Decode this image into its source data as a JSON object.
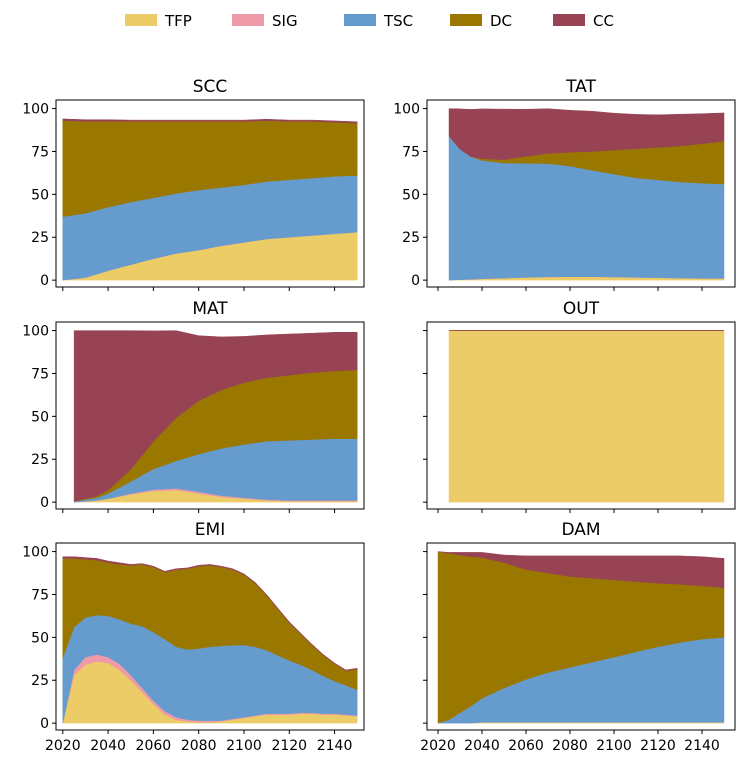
{
  "legend": {
    "placement": "top-center",
    "items": [
      {
        "label": "TFP",
        "color": "#ECCC67"
      },
      {
        "label": "SIG",
        "color": "#EE9AA8"
      },
      {
        "label": "TSC",
        "color": "#669BCE"
      },
      {
        "label": "DC",
        "color": "#9A7800"
      },
      {
        "label": "CC",
        "color": "#974353"
      }
    ]
  },
  "chart_data": [
    {
      "type": "area",
      "title": "SCC",
      "stacked": true,
      "x": [
        2020,
        2030,
        2040,
        2050,
        2060,
        2070,
        2080,
        2090,
        2100,
        2110,
        2120,
        2130,
        2140,
        2150
      ],
      "ylim": [
        -4,
        105
      ],
      "yticks": [
        0,
        25,
        50,
        75,
        100
      ],
      "xlim": [
        2017,
        2153
      ],
      "xticks": [
        2020,
        2040,
        2060,
        2080,
        2100,
        2120,
        2140
      ],
      "show_xtick_labels": false,
      "series": [
        {
          "name": "TFP",
          "values": [
            0,
            1.5,
            5.5,
            9,
            12.5,
            15.5,
            17.5,
            20,
            22,
            24,
            25,
            26,
            27,
            28
          ]
        },
        {
          "name": "SIG",
          "values": [
            0,
            0,
            0,
            0,
            0,
            0,
            0,
            0,
            0,
            0,
            0,
            0,
            0,
            0
          ]
        },
        {
          "name": "TSC",
          "values": [
            37,
            37.5,
            37,
            36.5,
            35.5,
            35,
            35,
            34,
            33.5,
            33.5,
            33.5,
            33.5,
            33.5,
            33
          ]
        },
        {
          "name": "DC",
          "values": [
            56,
            53.5,
            50,
            47,
            44.5,
            42,
            40,
            38.5,
            37,
            35.5,
            34,
            33,
            31.5,
            30.5
          ]
        },
        {
          "name": "CC",
          "values": [
            1,
            1,
            1,
            0.8,
            0.8,
            0.8,
            0.8,
            0.8,
            0.8,
            0.8,
            0.8,
            0.8,
            0.8,
            0.8
          ]
        }
      ]
    },
    {
      "type": "area",
      "title": "TAT",
      "stacked": true,
      "x": [
        2025,
        2030,
        2035,
        2040,
        2050,
        2060,
        2070,
        2080,
        2090,
        2100,
        2110,
        2120,
        2130,
        2140,
        2150
      ],
      "ylim": [
        -4,
        105
      ],
      "yticks": [
        0,
        25,
        50,
        75,
        100
      ],
      "xlim": [
        2015,
        2155
      ],
      "xticks": [
        2020,
        2040,
        2060,
        2080,
        2100,
        2120,
        2140
      ],
      "show_xtick_labels": false,
      "series": [
        {
          "name": "TFP",
          "values": [
            0,
            0.3,
            0.5,
            0.8,
            1.2,
            1.6,
            1.9,
            2,
            2,
            1.8,
            1.6,
            1.4,
            1.2,
            1,
            1
          ]
        },
        {
          "name": "SIG",
          "values": [
            0,
            0,
            0,
            0,
            0,
            0,
            0,
            0,
            0,
            0,
            0,
            0,
            0,
            0,
            0
          ]
        },
        {
          "name": "TSC",
          "values": [
            84,
            76,
            71.5,
            69,
            67,
            66.5,
            66,
            64.5,
            62,
            60,
            58,
            57,
            56,
            55.5,
            55
          ]
        },
        {
          "name": "DC",
          "values": [
            0,
            0,
            0,
            1,
            2,
            4,
            6,
            8,
            11,
            14,
            17,
            19,
            21,
            23,
            25
          ]
        },
        {
          "name": "CC",
          "values": [
            16,
            23.5,
            27.5,
            29,
            29.5,
            27.5,
            26,
            24.5,
            23.5,
            21.5,
            20,
            19,
            18.5,
            17.5,
            16.5
          ]
        }
      ]
    },
    {
      "type": "area",
      "title": "MAT",
      "stacked": true,
      "x": [
        2025,
        2030,
        2035,
        2040,
        2050,
        2060,
        2070,
        2080,
        2090,
        2100,
        2110,
        2120,
        2130,
        2140,
        2150
      ],
      "ylim": [
        -4,
        105
      ],
      "yticks": [
        0,
        25,
        50,
        75,
        100
      ],
      "xlim": [
        2017,
        2153
      ],
      "xticks": [
        2020,
        2040,
        2060,
        2080,
        2100,
        2120,
        2140
      ],
      "show_xtick_labels": false,
      "series": [
        {
          "name": "TFP",
          "values": [
            0,
            0.5,
            1,
            2,
            4.5,
            6.5,
            7,
            5,
            3,
            2,
            1,
            0.5,
            0.5,
            0.5,
            0.5
          ]
        },
        {
          "name": "SIG",
          "values": [
            0,
            0,
            0,
            0,
            0.5,
            0.8,
            1,
            1,
            0.8,
            0.6,
            0.5,
            0.5,
            0.5,
            0.5,
            0.5
          ]
        },
        {
          "name": "TSC",
          "values": [
            0.5,
            1,
            1.5,
            3,
            7,
            12,
            16,
            22,
            27.5,
            31,
            34,
            35,
            35.5,
            36,
            36
          ]
        },
        {
          "name": "DC",
          "values": [
            0,
            0.5,
            1,
            2,
            7,
            16,
            25,
            31,
            34,
            36,
            37,
            38,
            39,
            39.5,
            40
          ]
        },
        {
          "name": "CC",
          "values": [
            99.5,
            98,
            96.5,
            93,
            81,
            64.5,
            51,
            38,
            31,
            27,
            25,
            24,
            23,
            22.5,
            22
          ]
        }
      ]
    },
    {
      "type": "area",
      "title": "OUT",
      "stacked": true,
      "x": [
        2025,
        2150
      ],
      "ylim": [
        -4,
        105
      ],
      "yticks": [
        0,
        25,
        50,
        75,
        100
      ],
      "xlim": [
        2015,
        2155
      ],
      "xticks": [
        2020,
        2040,
        2060,
        2080,
        2100,
        2120,
        2140
      ],
      "show_xtick_labels": false,
      "show_yticks": false,
      "series": [
        {
          "name": "TFP",
          "values": [
            100,
            100
          ]
        },
        {
          "name": "SIG",
          "values": [
            0,
            0
          ]
        },
        {
          "name": "TSC",
          "values": [
            0,
            0
          ]
        },
        {
          "name": "DC",
          "values": [
            0,
            0
          ]
        },
        {
          "name": "CC",
          "values": [
            0,
            0
          ]
        }
      ]
    },
    {
      "type": "area",
      "title": "EMI",
      "stacked": true,
      "x": [
        2020,
        2025,
        2030,
        2035,
        2040,
        2045,
        2050,
        2055,
        2060,
        2065,
        2070,
        2075,
        2080,
        2085,
        2090,
        2095,
        2100,
        2105,
        2110,
        2115,
        2120,
        2125,
        2130,
        2135,
        2140,
        2145,
        2150
      ],
      "ylim": [
        -4,
        105
      ],
      "yticks": [
        0,
        25,
        50,
        75,
        100
      ],
      "xlim": [
        2017,
        2153
      ],
      "xticks": [
        2020,
        2040,
        2060,
        2080,
        2100,
        2120,
        2140
      ],
      "show_xtick_labels": true,
      "series": [
        {
          "name": "TFP",
          "values": [
            0,
            28,
            34,
            36,
            35,
            31,
            25,
            18,
            11,
            5,
            2,
            1,
            0.5,
            0.5,
            1,
            2,
            3,
            4,
            5,
            5,
            5,
            5.5,
            5.5,
            5,
            5,
            4.5,
            4
          ]
        },
        {
          "name": "SIG",
          "values": [
            0,
            3,
            4.5,
            4,
            3.5,
            3.5,
            3,
            2.5,
            2,
            2,
            1.5,
            1,
            1,
            1,
            0.5,
            0.5,
            0.5,
            0.5,
            0.5,
            0.5,
            0.5,
            0.5,
            0.5,
            0.5,
            0.5,
            0.5,
            0.5
          ]
        },
        {
          "name": "TSC",
          "values": [
            38,
            25,
            23,
            23,
            24,
            26,
            30,
            36,
            40,
            42,
            41,
            41,
            42,
            43,
            43.5,
            43,
            42,
            40,
            37,
            34,
            31,
            28,
            25,
            22,
            19,
            17,
            15
          ]
        },
        {
          "name": "DC",
          "values": [
            58,
            40,
            34,
            32,
            31,
            32,
            34,
            36,
            38,
            39,
            45,
            47,
            48,
            47.5,
            46,
            44,
            41,
            37,
            32,
            27,
            22,
            18,
            14.5,
            12,
            10,
            8.5,
            12
          ]
        },
        {
          "name": "CC",
          "values": [
            1,
            1,
            1,
            1,
            1,
            1,
            0.5,
            0.5,
            0.5,
            0.5,
            0.5,
            0.5,
            0.5,
            0.5,
            0.5,
            0.5,
            0.5,
            0.5,
            0.5,
            0.5,
            0.5,
            0.5,
            0.5,
            0.5,
            0.5,
            0.5,
            0.5
          ]
        }
      ]
    },
    {
      "type": "area",
      "title": "DAM",
      "stacked": true,
      "x": [
        2020,
        2025,
        2030,
        2035,
        2040,
        2050,
        2060,
        2070,
        2080,
        2090,
        2100,
        2110,
        2120,
        2130,
        2140,
        2150
      ],
      "ylim": [
        -4,
        105
      ],
      "yticks": [
        0,
        25,
        50,
        75,
        100
      ],
      "xlim": [
        2015,
        2155
      ],
      "xticks": [
        2020,
        2040,
        2060,
        2080,
        2100,
        2120,
        2140
      ],
      "show_xtick_labels": true,
      "show_yticks": false,
      "series": [
        {
          "name": "TFP",
          "values": [
            0,
            0,
            0,
            0,
            0.5,
            0.5,
            0.5,
            0.5,
            0.5,
            0.5,
            0.5,
            0.5,
            0.5,
            0.5,
            0.5,
            0.5
          ]
        },
        {
          "name": "SIG",
          "values": [
            0,
            0,
            0,
            0,
            0,
            0,
            0,
            0,
            0,
            0,
            0,
            0,
            0,
            0,
            0,
            0
          ]
        },
        {
          "name": "TSC",
          "values": [
            0,
            2,
            6,
            10,
            14,
            20,
            25,
            29,
            32,
            35,
            38,
            41,
            44,
            46.5,
            48.5,
            49.5
          ]
        },
        {
          "name": "DC",
          "values": [
            100,
            97,
            92,
            87,
            82,
            73,
            64,
            58,
            53,
            49,
            45,
            41,
            37,
            34,
            31,
            29
          ]
        },
        {
          "name": "CC",
          "values": [
            0,
            0.5,
            1.5,
            2.5,
            3,
            4.5,
            8,
            10,
            12,
            13,
            14,
            15,
            16,
            16.5,
            17,
            17
          ]
        }
      ]
    }
  ]
}
